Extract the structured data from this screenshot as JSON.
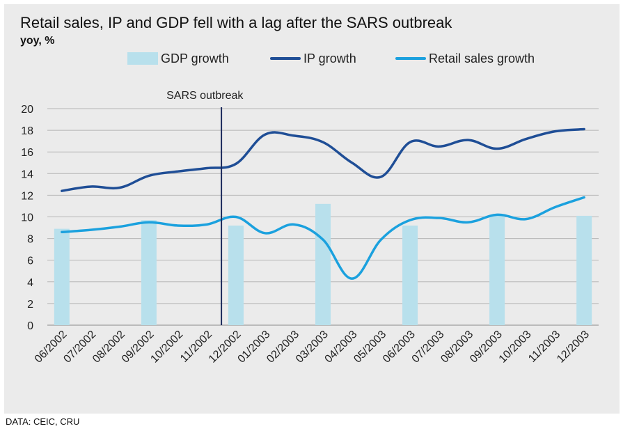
{
  "chart_data": {
    "type": "bar+line",
    "title": "Retail sales, IP and GDP fell with a lag after the SARS outbreak",
    "subtitle": "yoy, %",
    "categories": [
      "06/2002",
      "07/2002",
      "08/2002",
      "09/2002",
      "10/2002",
      "11/2002",
      "12/2002",
      "01/2003",
      "02/2003",
      "03/2003",
      "04/2003",
      "05/2003",
      "06/2003",
      "07/2003",
      "08/2003",
      "09/2003",
      "10/2003",
      "11/2003",
      "12/2003"
    ],
    "ylim": [
      0,
      20
    ],
    "yticks": [
      0,
      2,
      4,
      6,
      8,
      10,
      12,
      14,
      16,
      18,
      20
    ],
    "series": [
      {
        "name": "GDP growth",
        "kind": "bar",
        "color": "#b8e0ec",
        "values": [
          8.9,
          null,
          null,
          9.7,
          null,
          null,
          9.2,
          null,
          null,
          11.2,
          null,
          null,
          9.2,
          null,
          null,
          10.1,
          null,
          null,
          10.1
        ]
      },
      {
        "name": "IP growth",
        "kind": "line",
        "color": "#1f4e96",
        "values": [
          12.4,
          12.8,
          12.7,
          13.8,
          14.2,
          14.5,
          14.9,
          17.6,
          17.5,
          16.9,
          15.0,
          13.7,
          16.9,
          16.5,
          17.1,
          16.3,
          17.2,
          17.9,
          18.1
        ]
      },
      {
        "name": "Retail sales growth",
        "kind": "line",
        "color": "#1ba1de",
        "values": [
          8.6,
          8.8,
          9.1,
          9.5,
          9.2,
          9.3,
          10.0,
          8.5,
          9.3,
          7.9,
          4.3,
          7.9,
          9.7,
          9.9,
          9.5,
          10.2,
          9.8,
          10.9,
          11.8
        ]
      }
    ],
    "annotation": {
      "label": "SARS outbreak",
      "at_index": 5.5
    },
    "source": "DATA: CEIC, CRU"
  }
}
